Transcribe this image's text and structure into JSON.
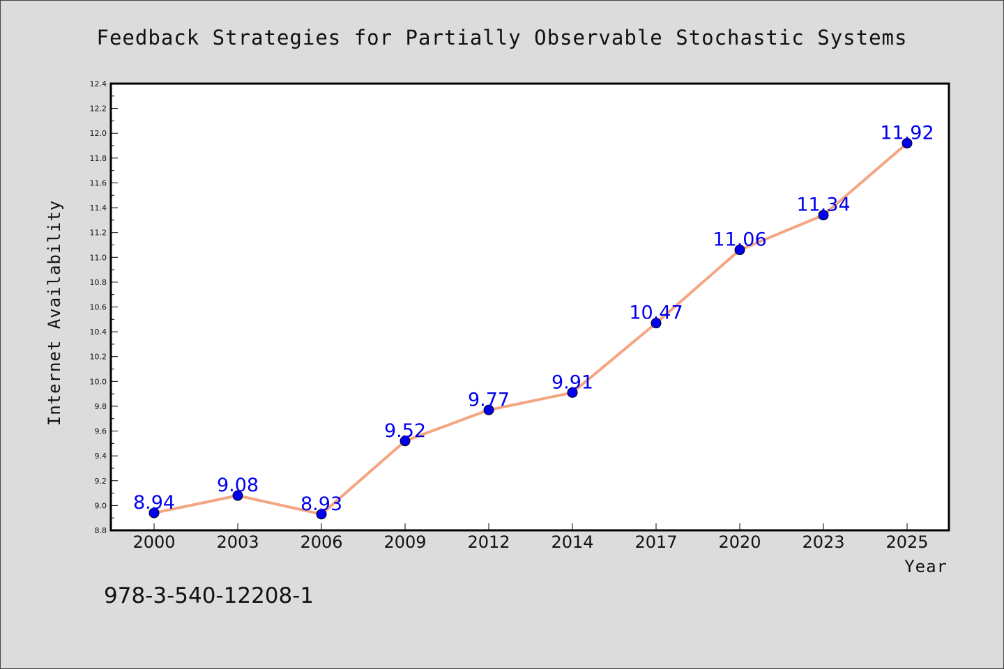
{
  "chart_data": {
    "type": "line",
    "title": "Feedback Strategies for Partially Observable Stochastic Systems",
    "xlabel": "Year",
    "ylabel": "Internet Availability",
    "categories": [
      "2000",
      "2003",
      "2006",
      "2009",
      "2012",
      "2014",
      "2017",
      "2020",
      "2023",
      "2025"
    ],
    "series": [
      {
        "values": [
          8.94,
          9.08,
          8.93,
          9.52,
          9.77,
          9.91,
          10.47,
          11.06,
          11.34,
          11.92
        ]
      }
    ],
    "value_labels": [
      "8.94",
      "9.08",
      "8.93",
      "9.52",
      "9.77",
      "9.91",
      "10.47",
      "11.06",
      "11.34",
      "11.92"
    ],
    "ylim": [
      8.8,
      12.4
    ],
    "yticks": [
      "8.8",
      "9.0",
      "9.2",
      "9.4",
      "9.6",
      "9.8",
      "10.0",
      "10.2",
      "10.4",
      "10.6",
      "10.8",
      "11.0",
      "11.2",
      "11.4",
      "11.6",
      "11.8",
      "12.0",
      "12.2",
      "12.4"
    ],
    "grid": false,
    "legend": "none",
    "colors": {
      "line": "#f4a582",
      "marker": "#0000ee",
      "data_label": "#0000ee",
      "plot_bg": "#ffffff",
      "page_bg": "#dcdcdc"
    }
  },
  "footer_text": "978-3-540-12208-1"
}
